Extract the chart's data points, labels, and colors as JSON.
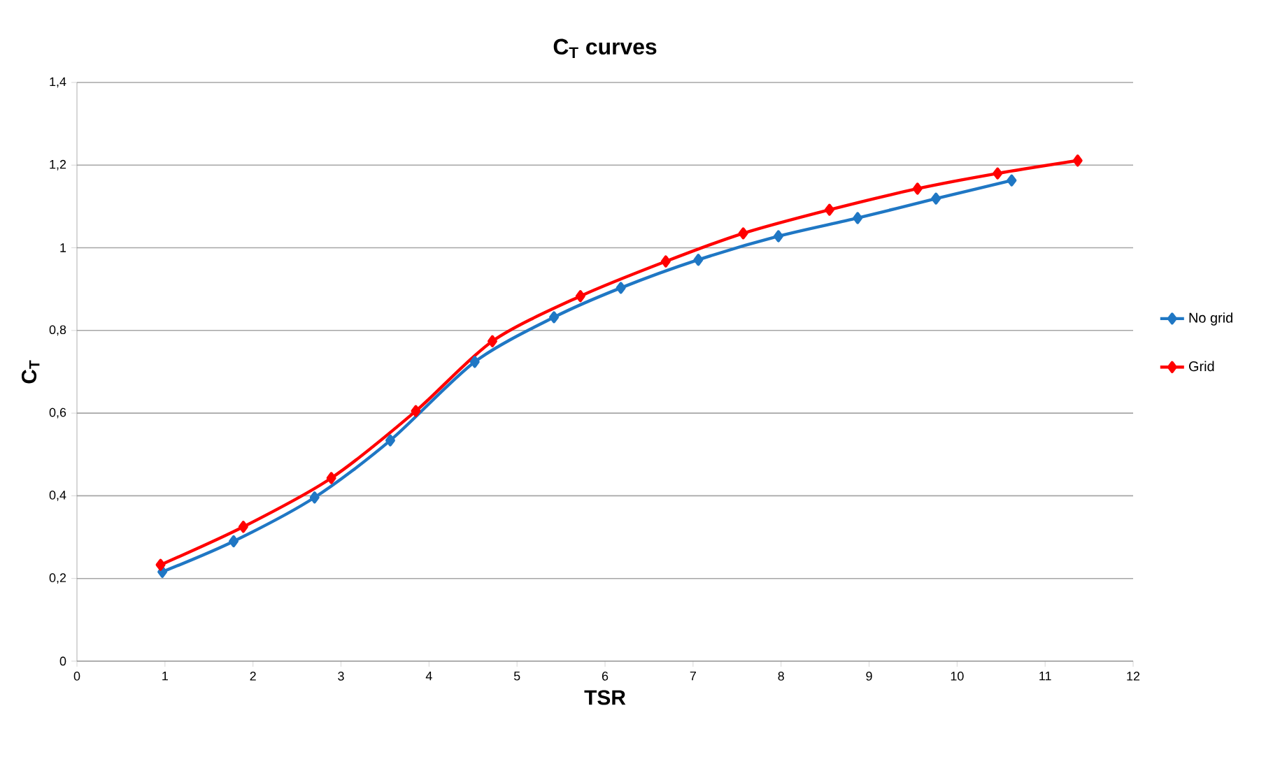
{
  "chart_data": {
    "type": "line",
    "title": "C$_{T}$ curves",
    "xlabel": "TSR",
    "ylabel": "C$_{T}$",
    "xlim": [
      0,
      12
    ],
    "xticks": [
      0,
      1,
      2,
      3,
      4,
      5,
      6,
      7,
      8,
      9,
      10,
      11,
      12
    ],
    "ylim": [
      0,
      1.4
    ],
    "yticks": [
      0,
      {
        "value": 0.2,
        "label": "0,2"
      },
      {
        "value": 0.4,
        "label": "0,4"
      },
      {
        "value": 0.6,
        "label": "0,6"
      },
      {
        "value": 0.8,
        "label": "0,8"
      },
      1,
      {
        "value": 1.2,
        "label": "1,2"
      },
      {
        "value": 1.4,
        "label": "1,4"
      }
    ],
    "grid": "y",
    "legend": "right",
    "marker": "diamond",
    "line_style": "solid",
    "series": [
      {
        "name": "No grid",
        "color": "#1f77c4",
        "x": [
          0.97,
          1.78,
          2.7,
          3.56,
          4.52,
          5.42,
          6.18,
          7.06,
          7.97,
          8.87,
          9.76,
          10.62
        ],
        "values": [
          0.216,
          0.29,
          0.396,
          0.534,
          0.724,
          0.832,
          0.903,
          0.971,
          1.028,
          1.072,
          1.119,
          1.163
        ]
      },
      {
        "name": "Grid",
        "color": "#ff0000",
        "x": [
          0.95,
          1.89,
          2.89,
          3.85,
          4.72,
          5.72,
          6.69,
          7.57,
          8.55,
          9.55,
          10.46,
          11.37
        ],
        "values": [
          0.233,
          0.325,
          0.443,
          0.605,
          0.774,
          0.883,
          0.967,
          1.035,
          1.092,
          1.143,
          1.18,
          1.211
        ]
      }
    ]
  }
}
